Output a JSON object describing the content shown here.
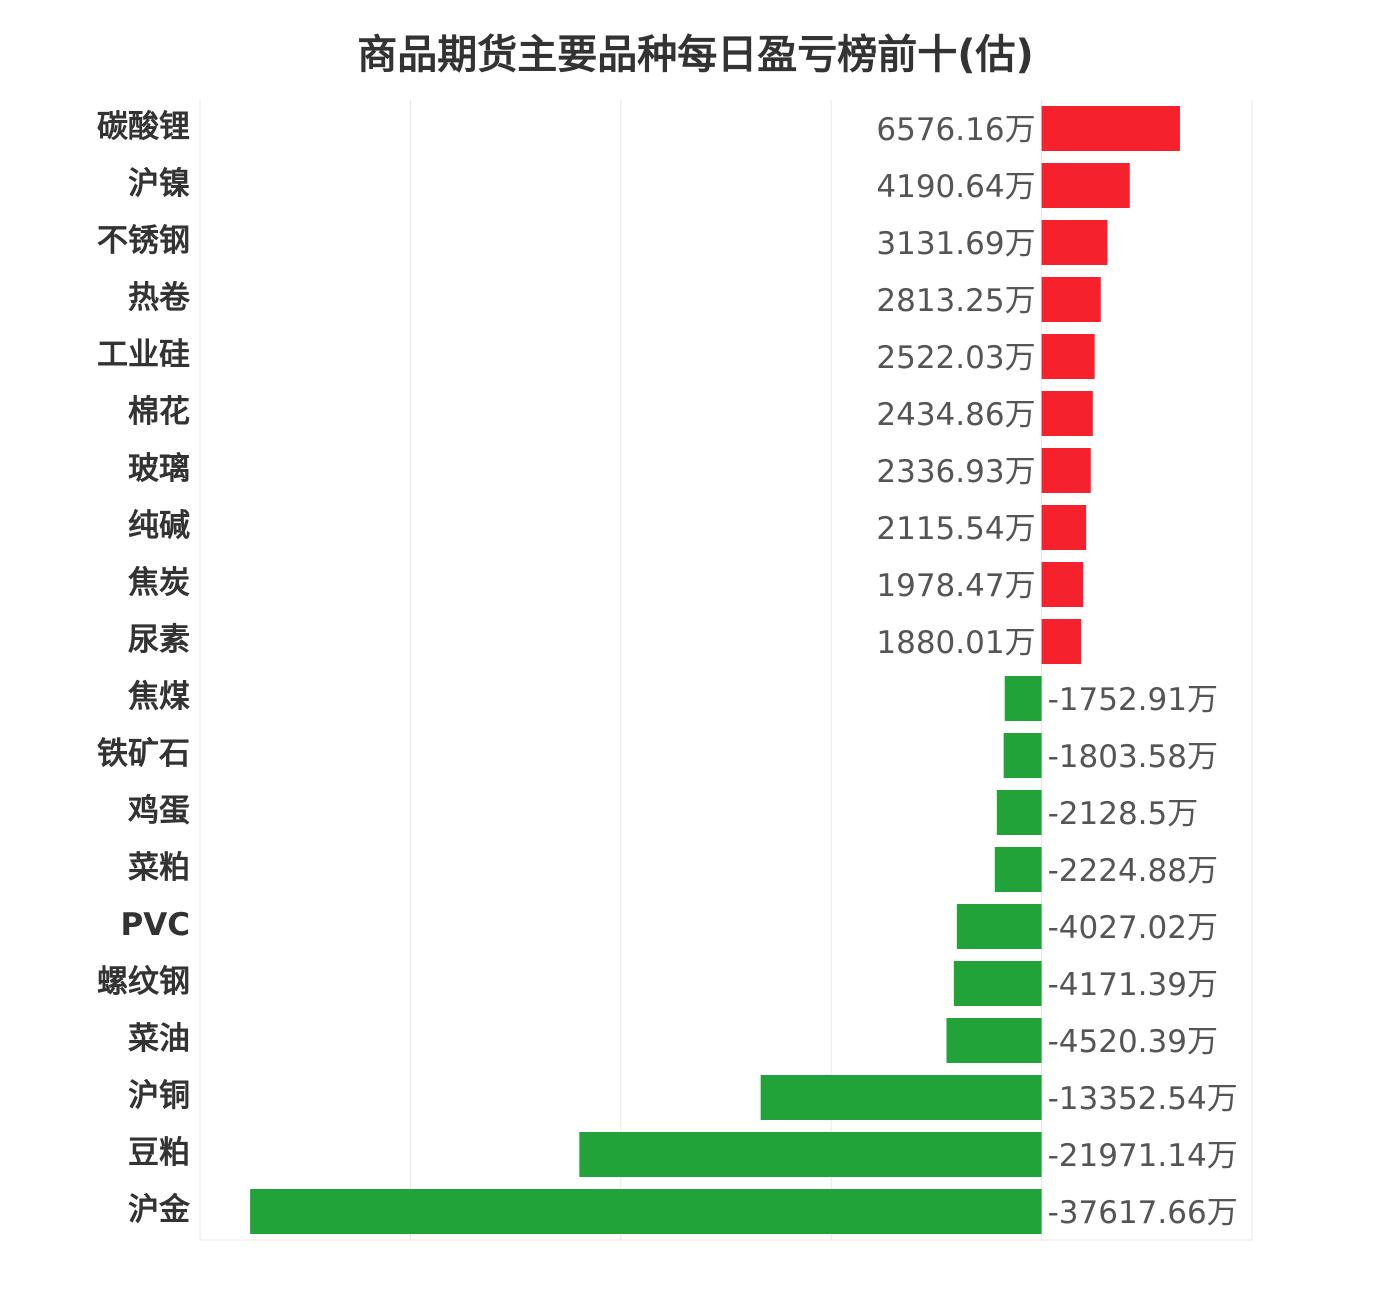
{
  "chart_data": {
    "type": "bar",
    "orientation": "horizontal",
    "title": "商品期货主要品种每日盈亏榜前十(估)",
    "unit": "万",
    "categories": [
      "碳酸锂",
      "沪镍",
      "不锈钢",
      "热卷",
      "工业硅",
      "棉花",
      "玻璃",
      "纯碱",
      "焦炭",
      "尿素",
      "焦煤",
      "铁矿石",
      "鸡蛋",
      "菜粕",
      "PVC",
      "螺纹钢",
      "菜油",
      "沪铜",
      "豆粕",
      "沪金"
    ],
    "values": [
      6576.16,
      4190.64,
      3131.69,
      2813.25,
      2522.03,
      2434.86,
      2336.93,
      2115.54,
      1978.47,
      1880.01,
      -1752.91,
      -1803.58,
      -2128.5,
      -2224.88,
      -4027.02,
      -4171.39,
      -4520.39,
      -13352.54,
      -21971.14,
      -37617.66
    ],
    "labels": [
      "6576.16万",
      "4190.64万",
      "3131.69万",
      "2813.25万",
      "2522.03万",
      "2434.86万",
      "2336.93万",
      "2115.54万",
      "1978.47万",
      "1880.01万",
      "-1752.91万",
      "-1803.58万",
      "-2128.5万",
      "-2224.88万",
      "-4027.02万",
      "-4171.39万",
      "-4520.39万",
      "-13352.54万",
      "-21971.14万",
      "-37617.66万"
    ],
    "xlim": [
      -40000,
      10000
    ],
    "grid": true,
    "colors": {
      "positive": "#f5222d",
      "negative": "#22a33a"
    }
  }
}
